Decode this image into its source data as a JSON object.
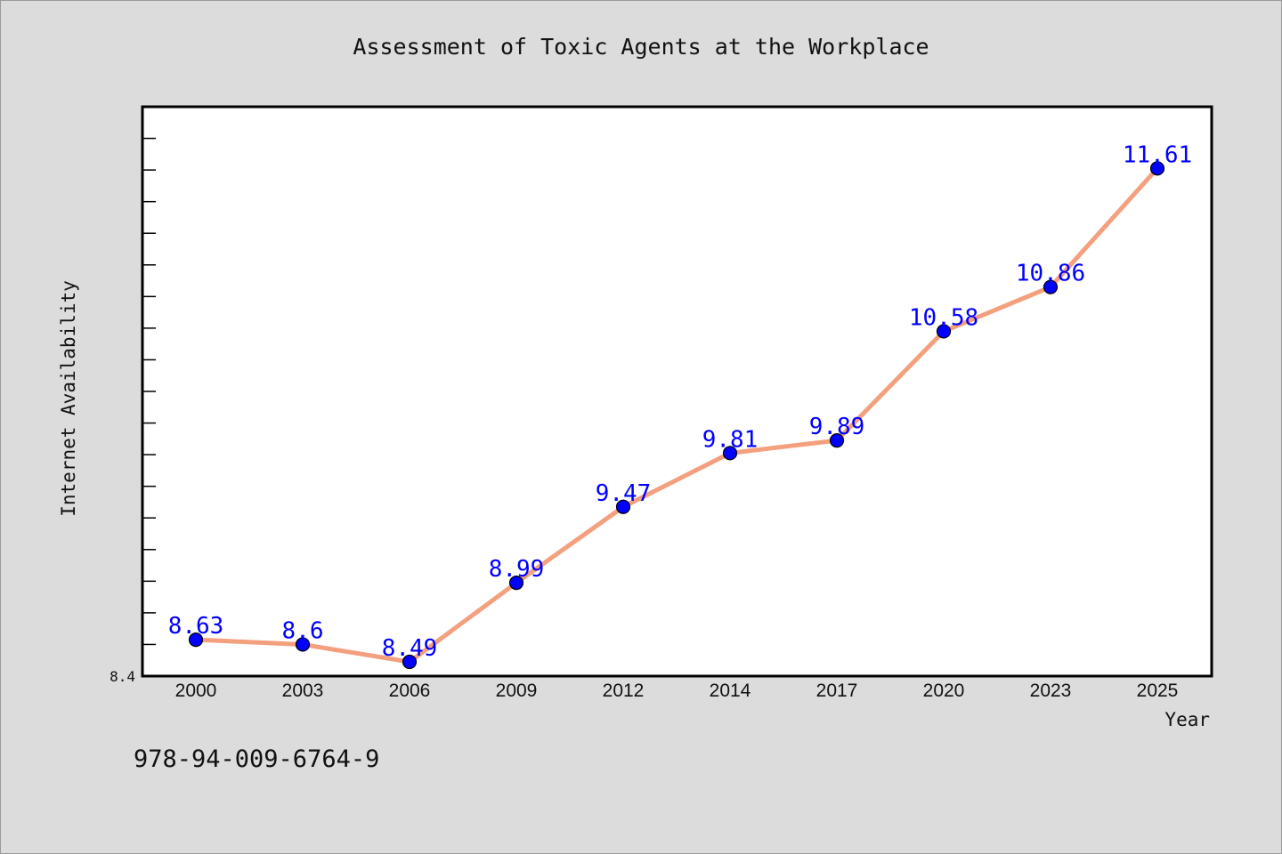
{
  "chart_data": {
    "type": "line",
    "title": "Assessment of Toxic Agents at the Workplace",
    "xlabel": "Year",
    "ylabel": "Internet Availability",
    "categories": [
      "2000",
      "2003",
      "2006",
      "2009",
      "2012",
      "2014",
      "2017",
      "2020",
      "2023",
      "2025"
    ],
    "series": [
      {
        "values": [
          8.63,
          8.6,
          8.49,
          8.99,
          9.47,
          9.81,
          9.89,
          10.58,
          10.86,
          11.61
        ],
        "data_labels": [
          "8.63",
          "8.6",
          "8.49",
          "8.99",
          "9.47",
          "9.81",
          "9.89",
          "10.58",
          "10.86",
          "11.61"
        ],
        "line_color": "#f4a07e",
        "marker_color": "#0000ff",
        "label_color": "#0000ff"
      }
    ],
    "ylim": [
      8.4,
      12.0
    ],
    "yticks": [
      "8.4"
    ],
    "grid": false,
    "legend": "none",
    "plot_background": "#ffffff",
    "figure_background": "#dcdcdc"
  },
  "footnote": "978-94-009-6764-9"
}
